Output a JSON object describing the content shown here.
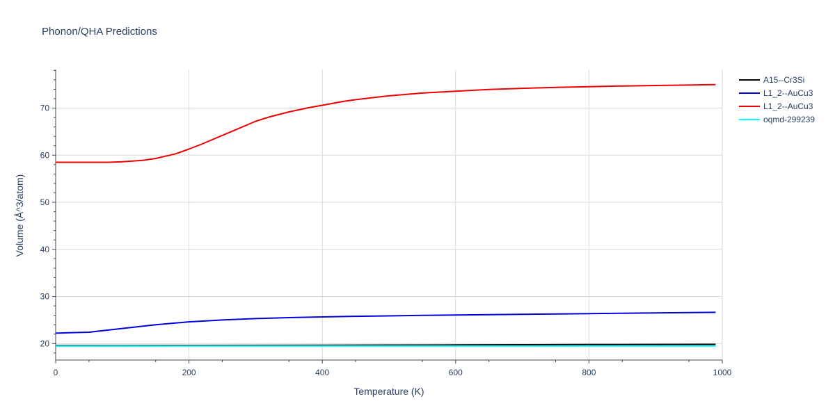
{
  "chart_data": {
    "type": "line",
    "title": "Phonon/QHA Predictions",
    "xlabel": "Temperature (K)",
    "ylabel": "Volume (Å^3/atom)",
    "xlim": [
      0,
      1000
    ],
    "ylim": [
      16.5,
      78.2
    ],
    "xticks": [
      0,
      200,
      400,
      600,
      800,
      1000
    ],
    "yticks": [
      20,
      30,
      40,
      50,
      60,
      70
    ],
    "grid": true,
    "legend_position": "top-right",
    "series": [
      {
        "name": "A15--Cr3Si",
        "color": "#000000",
        "x": [
          0,
          100,
          200,
          300,
          400,
          500,
          600,
          700,
          800,
          900,
          990
        ],
        "y": [
          19.55,
          19.57,
          19.6,
          19.62,
          19.65,
          19.68,
          19.71,
          19.74,
          19.77,
          19.8,
          19.82
        ]
      },
      {
        "name": "L1_2--AuCu3",
        "color": "#0000dd",
        "x": [
          0,
          20,
          50,
          100,
          150,
          200,
          250,
          300,
          350,
          400,
          450,
          500,
          550,
          600,
          650,
          700,
          750,
          800,
          850,
          900,
          950,
          990
        ],
        "y": [
          22.2,
          22.3,
          22.4,
          23.2,
          24.0,
          24.6,
          25.0,
          25.3,
          25.5,
          25.65,
          25.78,
          25.88,
          25.97,
          26.05,
          26.12,
          26.2,
          26.28,
          26.36,
          26.43,
          26.5,
          26.57,
          26.62
        ]
      },
      {
        "name": "L1_2--AuCu3",
        "color": "#ee0000",
        "x": [
          0,
          50,
          80,
          100,
          130,
          150,
          180,
          200,
          220,
          250,
          280,
          300,
          320,
          350,
          380,
          400,
          430,
          450,
          480,
          500,
          550,
          600,
          650,
          700,
          750,
          800,
          850,
          900,
          950,
          990
        ],
        "y": [
          58.5,
          58.5,
          58.5,
          58.6,
          58.9,
          59.3,
          60.3,
          61.3,
          62.4,
          64.2,
          66.0,
          67.2,
          68.1,
          69.2,
          70.1,
          70.6,
          71.4,
          71.8,
          72.3,
          72.6,
          73.2,
          73.6,
          73.95,
          74.2,
          74.4,
          74.55,
          74.7,
          74.8,
          74.9,
          75.0
        ]
      },
      {
        "name": "oqmd-299239",
        "color": "#00ffff",
        "x": [
          0,
          200,
          400,
          600,
          800,
          990
        ],
        "y": [
          19.45,
          19.46,
          19.47,
          19.47,
          19.48,
          19.48
        ]
      }
    ]
  }
}
